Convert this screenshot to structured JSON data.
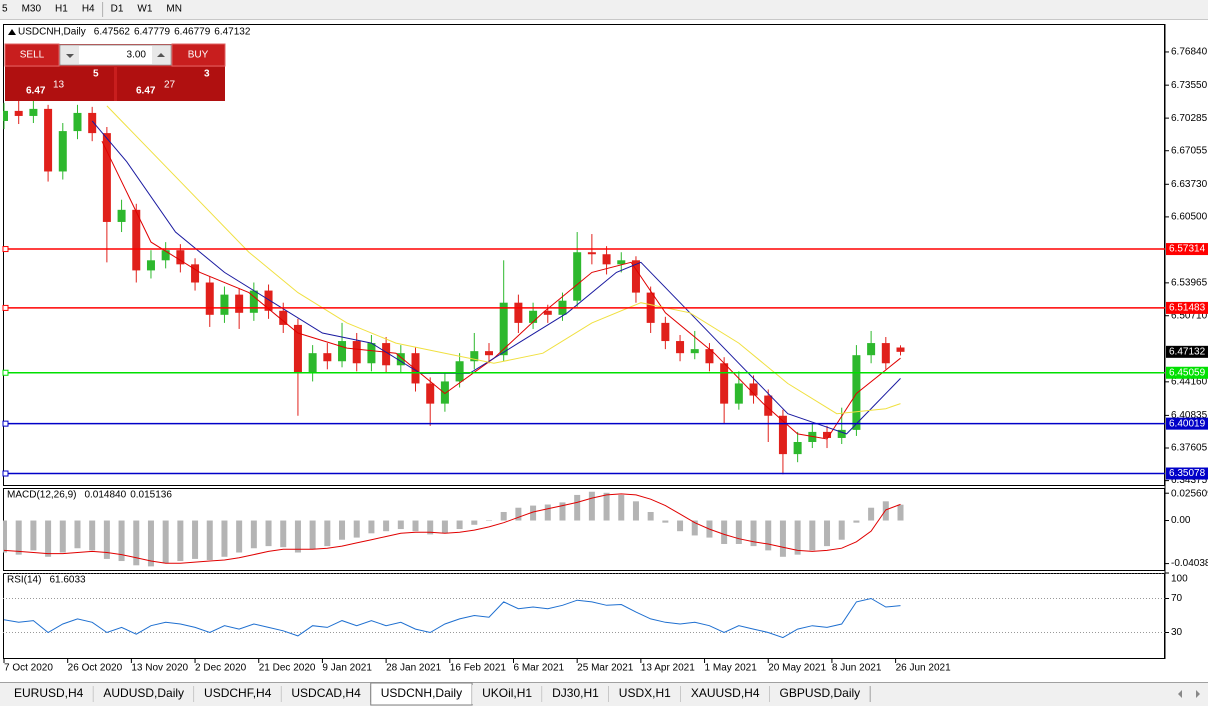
{
  "toolbar": {
    "timeframes": [
      "5",
      "M30",
      "H1",
      "H4",
      "D1",
      "W1",
      "MN"
    ]
  },
  "trade_panel": {
    "sell": "SELL",
    "buy": "BUY",
    "volume": "3.00",
    "bid": {
      "big": "6.47",
      "pips": "13",
      "point": "5"
    },
    "ask": {
      "big": "6.47",
      "pips": "27",
      "point": "3"
    }
  },
  "chart_data": [
    {
      "type": "candlestick",
      "title": "USDCNH,Daily",
      "x": [
        0,
        3,
        6,
        9,
        12,
        15,
        18,
        21,
        24,
        27,
        30,
        33,
        36,
        39,
        42,
        45,
        48,
        51,
        54,
        57,
        60,
        63,
        66,
        69,
        72,
        75,
        78,
        81,
        84,
        87,
        90,
        93,
        96,
        99,
        102,
        105,
        108,
        111,
        114,
        117,
        120,
        123,
        126,
        129,
        132,
        135,
        138,
        141,
        144,
        147,
        150,
        153,
        156,
        159,
        162,
        165,
        168,
        171,
        174,
        177,
        180,
        183
      ],
      "candles": [
        [
          6.7,
          6.718,
          6.692,
          6.71
        ],
        [
          6.71,
          6.722,
          6.697,
          6.705
        ],
        [
          6.705,
          6.72,
          6.698,
          6.712
        ],
        [
          6.712,
          6.716,
          6.64,
          6.65
        ],
        [
          6.65,
          6.698,
          6.642,
          6.69
        ],
        [
          6.69,
          6.716,
          6.682,
          6.708
        ],
        [
          6.708,
          6.714,
          6.68,
          6.688
        ],
        [
          6.688,
          6.694,
          6.56,
          6.6
        ],
        [
          6.6,
          6.622,
          6.59,
          6.612
        ],
        [
          6.612,
          6.618,
          6.54,
          6.552
        ],
        [
          6.552,
          6.572,
          6.544,
          6.562
        ],
        [
          6.562,
          6.58,
          6.554,
          6.572
        ],
        [
          6.572,
          6.578,
          6.55,
          6.558
        ],
        [
          6.558,
          6.564,
          6.532,
          6.54
        ],
        [
          6.54,
          6.546,
          6.496,
          6.508
        ],
        [
          6.508,
          6.536,
          6.5,
          6.528
        ],
        [
          6.528,
          6.534,
          6.494,
          6.51
        ],
        [
          6.51,
          6.54,
          6.502,
          6.532
        ],
        [
          6.532,
          6.538,
          6.504,
          6.512
        ],
        [
          6.512,
          6.52,
          6.49,
          6.498
        ],
        [
          6.498,
          6.504,
          6.408,
          6.45
        ],
        [
          6.45,
          6.478,
          6.442,
          6.47
        ],
        [
          6.47,
          6.48,
          6.454,
          6.462
        ],
        [
          6.462,
          6.5,
          6.456,
          6.482
        ],
        [
          6.482,
          6.49,
          6.452,
          6.46
        ],
        [
          6.46,
          6.488,
          6.452,
          6.48
        ],
        [
          6.48,
          6.486,
          6.45,
          6.458
        ],
        [
          6.458,
          6.478,
          6.45,
          6.47
        ],
        [
          6.47,
          6.476,
          6.432,
          6.44
        ],
        [
          6.44,
          6.446,
          6.398,
          6.42
        ],
        [
          6.42,
          6.45,
          6.412,
          6.442
        ],
        [
          6.442,
          6.47,
          6.436,
          6.462
        ],
        [
          6.462,
          6.49,
          6.454,
          6.472
        ],
        [
          6.472,
          6.48,
          6.46,
          6.468
        ],
        [
          6.468,
          6.562,
          6.462,
          6.52
        ],
        [
          6.52,
          6.528,
          6.49,
          6.5
        ],
        [
          6.5,
          6.52,
          6.494,
          6.512
        ],
        [
          6.512,
          6.518,
          6.5,
          6.508
        ],
        [
          6.508,
          6.53,
          6.502,
          6.522
        ],
        [
          6.522,
          6.59,
          6.516,
          6.57
        ],
        [
          6.57,
          6.588,
          6.558,
          6.568
        ],
        [
          6.568,
          6.576,
          6.548,
          6.558
        ],
        [
          6.558,
          6.57,
          6.55,
          6.562
        ],
        [
          6.562,
          6.566,
          6.52,
          6.53
        ],
        [
          6.53,
          6.536,
          6.49,
          6.5
        ],
        [
          6.5,
          6.506,
          6.474,
          6.482
        ],
        [
          6.482,
          6.488,
          6.462,
          6.47
        ],
        [
          6.47,
          6.492,
          6.464,
          6.474
        ],
        [
          6.474,
          6.48,
          6.452,
          6.46
        ],
        [
          6.46,
          6.466,
          6.4,
          6.42
        ],
        [
          6.42,
          6.452,
          6.414,
          6.44
        ],
        [
          6.44,
          6.448,
          6.42,
          6.428
        ],
        [
          6.428,
          6.434,
          6.382,
          6.408
        ],
        [
          6.408,
          6.414,
          6.35,
          6.37
        ],
        [
          6.37,
          6.392,
          6.362,
          6.382
        ],
        [
          6.382,
          6.4,
          6.376,
          6.392
        ],
        [
          6.392,
          6.398,
          6.376,
          6.386
        ],
        [
          6.386,
          6.416,
          6.38,
          6.394
        ],
        [
          6.394,
          6.478,
          6.388,
          6.468
        ],
        [
          6.468,
          6.492,
          6.46,
          6.48
        ],
        [
          6.48,
          6.486,
          6.454,
          6.46
        ],
        [
          6.47562,
          6.47779,
          6.46779,
          6.47132
        ]
      ],
      "up_color": "#2db82d",
      "down_color": "#e0201b",
      "xlim": [
        0,
        188
      ],
      "xticks": [
        {
          "value": 0,
          "label": "7 Oct 2020"
        },
        {
          "value": 13,
          "label": "26 Oct 2020"
        },
        {
          "value": 26,
          "label": "13 Nov 2020"
        },
        {
          "value": 39,
          "label": "2 Dec 2020"
        },
        {
          "value": 52,
          "label": "21 Dec 2020"
        },
        {
          "value": 65,
          "label": "9 Jan 2021"
        },
        {
          "value": 78,
          "label": "28 Jan 2021"
        },
        {
          "value": 91,
          "label": "16 Feb 2021"
        },
        {
          "value": 104,
          "label": "6 Mar 2021"
        },
        {
          "value": 117,
          "label": "25 Mar 2021"
        },
        {
          "value": 130,
          "label": "13 Apr 2021"
        },
        {
          "value": 143,
          "label": "1 May 2021"
        },
        {
          "value": 156,
          "label": "20 May 2021"
        },
        {
          "value": 169,
          "label": "8 Jun 2021"
        },
        {
          "value": 182,
          "label": "26 Jun 2021"
        }
      ],
      "ylim": [
        6.3394,
        6.7951
      ],
      "yticks": [
        {
          "value": 6.7684,
          "label": "6.76840"
        },
        {
          "value": 6.7355,
          "label": "6.73550"
        },
        6.70285,
        6.67055,
        {
          "value": 6.6373,
          "label": "6.63730"
        },
        {
          "value": 6.605,
          "label": "6.60500"
        },
        6.53965,
        {
          "value": 6.5071,
          "label": "6.50710"
        },
        {
          "value": 6.4416,
          "label": "6.44160"
        },
        6.40835,
        6.37605,
        6.34375
      ],
      "levels": [
        {
          "value": 6.57314,
          "color": "#ff0000"
        },
        {
          "value": 6.51483,
          "color": "#ff0000"
        },
        {
          "value": 6.45059,
          "color": "#00e000"
        },
        {
          "value": 6.40019,
          "color": "#0000c8"
        },
        {
          "value": 6.35078,
          "color": "#0000c8"
        }
      ],
      "series": [
        {
          "color": "#e00000",
          "x": [
            20,
            30,
            40,
            50,
            60,
            70,
            80,
            90,
            100,
            110,
            120,
            128,
            135,
            145,
            155,
            162,
            168,
            174,
            183
          ],
          "values": [
            6.68,
            6.58,
            6.55,
            6.53,
            6.49,
            6.475,
            6.47,
            6.43,
            6.465,
            6.51,
            6.55,
            6.56,
            6.51,
            6.47,
            6.42,
            6.39,
            6.385,
            6.43,
            6.465
          ]
        },
        {
          "color": "#1a1aa0",
          "x": [
            18,
            25,
            35,
            45,
            55,
            65,
            75,
            85,
            95,
            105,
            115,
            125,
            130,
            140,
            150,
            160,
            166,
            172,
            178,
            183
          ],
          "values": [
            6.7,
            6.66,
            6.59,
            6.55,
            6.52,
            6.49,
            6.48,
            6.45,
            6.45,
            6.48,
            6.51,
            6.55,
            6.56,
            6.51,
            6.46,
            6.41,
            6.4,
            6.39,
            6.42,
            6.445
          ]
        },
        {
          "color": "#f0e040",
          "x": [
            21,
            30,
            40,
            50,
            60,
            70,
            80,
            90,
            100,
            110,
            120,
            130,
            140,
            150,
            160,
            170,
            180,
            183
          ],
          "values": [
            6.715,
            6.67,
            6.62,
            6.57,
            6.53,
            6.5,
            6.48,
            6.47,
            6.46,
            6.47,
            6.5,
            6.52,
            6.51,
            6.48,
            6.44,
            6.41,
            6.415,
            6.42
          ]
        }
      ]
    },
    {
      "type": "macd",
      "title": "MACD(12,26,9)",
      "readout": [
        "0.014840",
        "0.015136"
      ],
      "color": "#b4b4b4",
      "values": [
        -0.03,
        -0.032,
        -0.028,
        -0.034,
        -0.03,
        -0.026,
        -0.028,
        -0.036,
        -0.038,
        -0.042,
        -0.043,
        -0.04,
        -0.038,
        -0.036,
        -0.037,
        -0.034,
        -0.03,
        -0.026,
        -0.024,
        -0.025,
        -0.03,
        -0.027,
        -0.024,
        -0.018,
        -0.016,
        -0.012,
        -0.01,
        -0.008,
        -0.01,
        -0.013,
        -0.012,
        -0.008,
        -0.004,
        0.0,
        0.008,
        0.012,
        0.014,
        0.015,
        0.017,
        0.024,
        0.027,
        0.026,
        0.024,
        0.018,
        0.008,
        -0.002,
        -0.01,
        -0.014,
        -0.016,
        -0.022,
        -0.022,
        -0.024,
        -0.028,
        -0.034,
        -0.032,
        -0.028,
        -0.024,
        -0.018,
        -0.002,
        0.012,
        0.018,
        0.01484
      ],
      "signal": {
        "color": "#e00000",
        "values": [
          -0.028,
          -0.029,
          -0.03,
          -0.031,
          -0.031,
          -0.03,
          -0.029,
          -0.03,
          -0.032,
          -0.035,
          -0.038,
          -0.04,
          -0.04,
          -0.039,
          -0.038,
          -0.037,
          -0.035,
          -0.032,
          -0.029,
          -0.027,
          -0.027,
          -0.027,
          -0.026,
          -0.024,
          -0.021,
          -0.018,
          -0.015,
          -0.012,
          -0.011,
          -0.011,
          -0.012,
          -0.011,
          -0.009,
          -0.006,
          -0.002,
          0.003,
          0.008,
          0.011,
          0.014,
          0.017,
          0.021,
          0.024,
          0.025,
          0.024,
          0.02,
          0.014,
          0.006,
          -0.002,
          -0.008,
          -0.013,
          -0.017,
          -0.02,
          -0.022,
          -0.025,
          -0.028,
          -0.029,
          -0.028,
          -0.026,
          -0.02,
          -0.01,
          0.01,
          0.015136
        ]
      },
      "ylim": [
        -0.0464,
        0.0305
      ],
      "yticks": [
        0.025609,
        {
          "value": 0,
          "label": "0.00"
        },
        -0.040386
      ]
    },
    {
      "type": "line",
      "title": "RSI(14)",
      "color": "#1e6fd0",
      "grid": "dotted",
      "values": [
        45,
        42,
        44,
        30,
        40,
        46,
        42,
        30,
        36,
        28,
        38,
        42,
        40,
        36,
        30,
        38,
        34,
        40,
        36,
        32,
        26,
        38,
        36,
        44,
        38,
        44,
        38,
        42,
        34,
        30,
        40,
        46,
        50,
        48,
        66,
        58,
        60,
        58,
        62,
        68,
        66,
        62,
        63,
        54,
        46,
        42,
        40,
        42,
        38,
        30,
        38,
        34,
        30,
        24,
        34,
        38,
        36,
        40,
        66,
        70,
        60,
        61.6033
      ],
      "ylim": [
        0,
        100
      ],
      "yticks": [
        100,
        70,
        30
      ]
    }
  ],
  "tabs": [
    "EURUSD,H4",
    "AUDUSD,Daily",
    "USDCHF,H4",
    "USDCAD,H4",
    "USDCNH,Daily",
    "UKOil,H1",
    "DJ30,H1",
    "USDX,H1",
    "XAUUSD,H4",
    "GBPUSD,Daily"
  ],
  "active_tab": 4
}
